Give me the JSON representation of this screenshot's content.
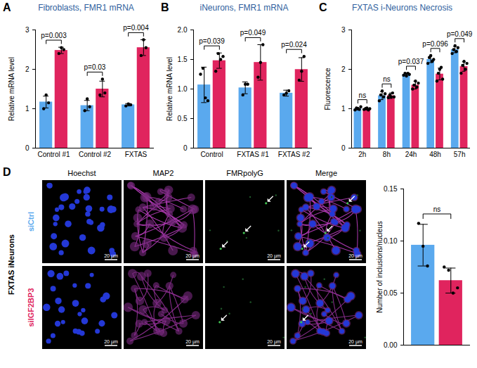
{
  "chart_data": [
    {
      "panel": "A",
      "type": "bar",
      "title": "Fibroblasts, FMR1 mRNA",
      "categories": [
        "Control #1",
        "Control #2",
        "FXTAS"
      ],
      "y_label": "Relative mRNA level",
      "ylim": [
        0,
        3
      ],
      "yticks": [
        0,
        1,
        2,
        3
      ],
      "annotations": [
        "p=0.003",
        "p=0.03",
        "p=0.004"
      ],
      "series": [
        {
          "color": "#5aa9ee",
          "values": [
            1.17,
            1.08,
            1.1
          ],
          "errors": [
            0.15,
            0.13,
            0.03
          ],
          "points": [
            [
              1.0,
              1.35,
              1.15
            ],
            [
              0.95,
              1.25,
              1.05
            ],
            [
              1.07,
              1.12,
              1.1
            ]
          ]
        },
        {
          "color": "#e0245e",
          "values": [
            2.48,
            1.5,
            2.55
          ],
          "errors": [
            0.08,
            0.2,
            0.2
          ],
          "points": [
            [
              2.4,
              2.55,
              2.5
            ],
            [
              1.35,
              1.75,
              1.4
            ],
            [
              2.35,
              2.75,
              2.55
            ]
          ]
        }
      ]
    },
    {
      "panel": "B",
      "type": "bar",
      "title": "iNeurons, FMR1 mRNA",
      "categories": [
        "Control",
        "FXTAS #1",
        "FXTAS #2"
      ],
      "y_label": "Relative mRNA level",
      "ylim": [
        0,
        2
      ],
      "yticks": [
        0,
        0.5,
        {
          "value": 1,
          "label": "1.0"
        },
        1.5,
        {
          "value": 2,
          "label": "2.0"
        }
      ],
      "annotations": [
        "p=0.039",
        "p=0.049",
        "p=0.024"
      ],
      "series": [
        {
          "color": "#5aa9ee",
          "values": [
            1.07,
            1.02,
            0.93
          ],
          "errors": [
            0.3,
            0.1,
            0.05
          ],
          "points": [
            [
              1.25,
              1.35,
              0.85,
              0.8
            ],
            [
              0.9,
              1.08,
              1.08
            ],
            [
              0.9,
              0.93,
              0.97
            ]
          ]
        },
        {
          "color": "#e0245e",
          "values": [
            1.48,
            1.45,
            1.33
          ],
          "errors": [
            0.13,
            0.3,
            0.2
          ],
          "points": [
            [
              1.3,
              1.6,
              1.5,
              1.55
            ],
            [
              1.2,
              1.45,
              1.75
            ],
            [
              1.15,
              1.3,
              1.55
            ]
          ]
        }
      ]
    },
    {
      "panel": "C",
      "type": "bar",
      "title": "FXTAS i-Neurons Necrosis",
      "categories": [
        "2h",
        "8h",
        "24h",
        "48h",
        "57h"
      ],
      "y_label": "Fluorescence",
      "ylim": [
        0,
        3
      ],
      "yticks": [
        0,
        1,
        2,
        3
      ],
      "annotations": [
        "ns",
        "ns",
        "p=0.037",
        "p=0.096",
        "p=0.049"
      ],
      "series": [
        {
          "color": "#5aa9ee",
          "values": [
            1.0,
            1.33,
            1.87,
            2.25,
            2.5
          ],
          "errors": [
            0.03,
            0.1,
            0.03,
            0.08,
            0.08
          ],
          "points": [
            [
              0.97,
              1.02,
              1.0,
              0.98,
              1.05
            ],
            [
              1.2,
              1.35,
              1.45,
              1.3,
              1.38
            ],
            [
              1.85,
              1.9,
              1.83,
              1.9,
              1.87
            ],
            [
              2.15,
              2.3,
              2.35,
              2.2,
              2.25
            ],
            [
              2.4,
              2.5,
              2.6,
              2.45,
              2.55
            ]
          ]
        },
        {
          "color": "#e0245e",
          "values": [
            1.0,
            1.33,
            1.6,
            1.88,
            2.07
          ],
          "errors": [
            0.03,
            0.07,
            0.1,
            0.15,
            0.12
          ],
          "points": [
            [
              0.98,
              1.0,
              1.02,
              0.97,
              1.0
            ],
            [
              1.28,
              1.35,
              1.3,
              1.4,
              1.3
            ],
            [
              1.5,
              1.6,
              1.7,
              1.55,
              1.65
            ],
            [
              1.7,
              1.9,
              2.0,
              2.05,
              1.75
            ],
            [
              1.9,
              2.1,
              2.2,
              2.0,
              2.15
            ]
          ]
        }
      ]
    },
    {
      "type": "bar",
      "categories": [
        null
      ],
      "y_label": "Number of inclusions/nucleus",
      "ylim": [
        0,
        0.15
      ],
      "yticks": [
        {
          "value": 0,
          "label": "0.00"
        },
        {
          "value": 0.05,
          "label": "0.05"
        },
        {
          "value": 0.1,
          "label": "0.10"
        },
        {
          "value": 0.15,
          "label": "0.15"
        }
      ],
      "annotations": [
        "ns"
      ],
      "series": [
        {
          "color": "#5aa9ee",
          "values": [
            0.096
          ],
          "errors": [
            0.02
          ],
          "points": [
            [
              0.117,
              0.095,
              0.076
            ]
          ]
        },
        {
          "color": "#e0245e",
          "values": [
            0.062
          ],
          "errors": [
            0.012
          ],
          "points": [
            [
              0.075,
              0.072,
              0.05,
              0.055
            ]
          ]
        }
      ]
    }
  ],
  "image_grid": {
    "panel": "D",
    "group_label": "FXTAS iNeurons",
    "columns": [
      "Hoechst",
      "MAP2",
      "FMRpolyG",
      "Merge"
    ],
    "rows": [
      {
        "label": "siCtrl",
        "color": "#5aa9ee",
        "arrows": 3
      },
      {
        "label": "siIGF2BP3",
        "color": "#e0245e",
        "arrows": 1
      }
    ],
    "scale_bar": "20 µm"
  }
}
